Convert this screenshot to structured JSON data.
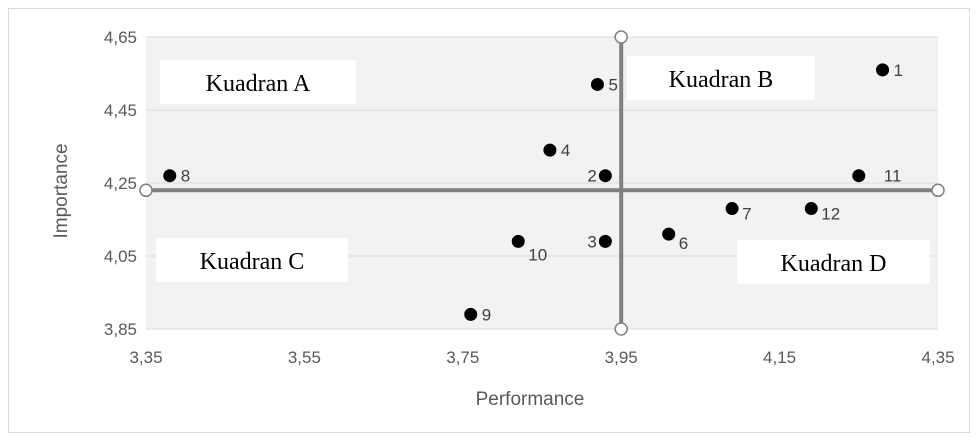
{
  "chart_data": {
    "type": "scatter",
    "title": "",
    "xlabel": "Performance",
    "ylabel": "Importance",
    "xlim": [
      3.35,
      4.35
    ],
    "ylim": [
      3.85,
      4.65
    ],
    "x_ticks": [
      "3,35",
      "3,55",
      "3,75",
      "3,95",
      "4,15",
      "4,35"
    ],
    "y_ticks": [
      "3,85",
      "4,05",
      "4,25",
      "4,45",
      "4,65"
    ],
    "x_tick_values": [
      3.35,
      3.55,
      3.75,
      3.95,
      4.15,
      4.35
    ],
    "y_tick_values": [
      3.85,
      4.05,
      4.25,
      4.45,
      4.65
    ],
    "grid": "horizontal",
    "plot_background": "#f2f2f2",
    "marker_color": "#000000",
    "divider_color": "#808080",
    "divider_x": 3.95,
    "divider_y": 4.23,
    "quadrants": [
      {
        "label": "Kuadran A",
        "position": "top-left"
      },
      {
        "label": "Kuadran B",
        "position": "top-right"
      },
      {
        "label": "Kuadran C",
        "position": "bottom-left"
      },
      {
        "label": "Kuadran D",
        "position": "bottom-right"
      }
    ],
    "points": [
      {
        "label": "1",
        "x": 4.28,
        "y": 4.56
      },
      {
        "label": "2",
        "x": 3.93,
        "y": 4.27
      },
      {
        "label": "3",
        "x": 3.93,
        "y": 4.09
      },
      {
        "label": "4",
        "x": 3.86,
        "y": 4.34
      },
      {
        "label": "5",
        "x": 3.92,
        "y": 4.52
      },
      {
        "label": "6",
        "x": 4.01,
        "y": 4.11
      },
      {
        "label": "7",
        "x": 4.09,
        "y": 4.18
      },
      {
        "label": "8",
        "x": 3.38,
        "y": 4.27
      },
      {
        "label": "9",
        "x": 3.76,
        "y": 3.89
      },
      {
        "label": "10",
        "x": 3.82,
        "y": 4.09
      },
      {
        "label": "11",
        "x": 4.25,
        "y": 4.27
      },
      {
        "label": "12",
        "x": 4.19,
        "y": 4.18
      }
    ]
  }
}
